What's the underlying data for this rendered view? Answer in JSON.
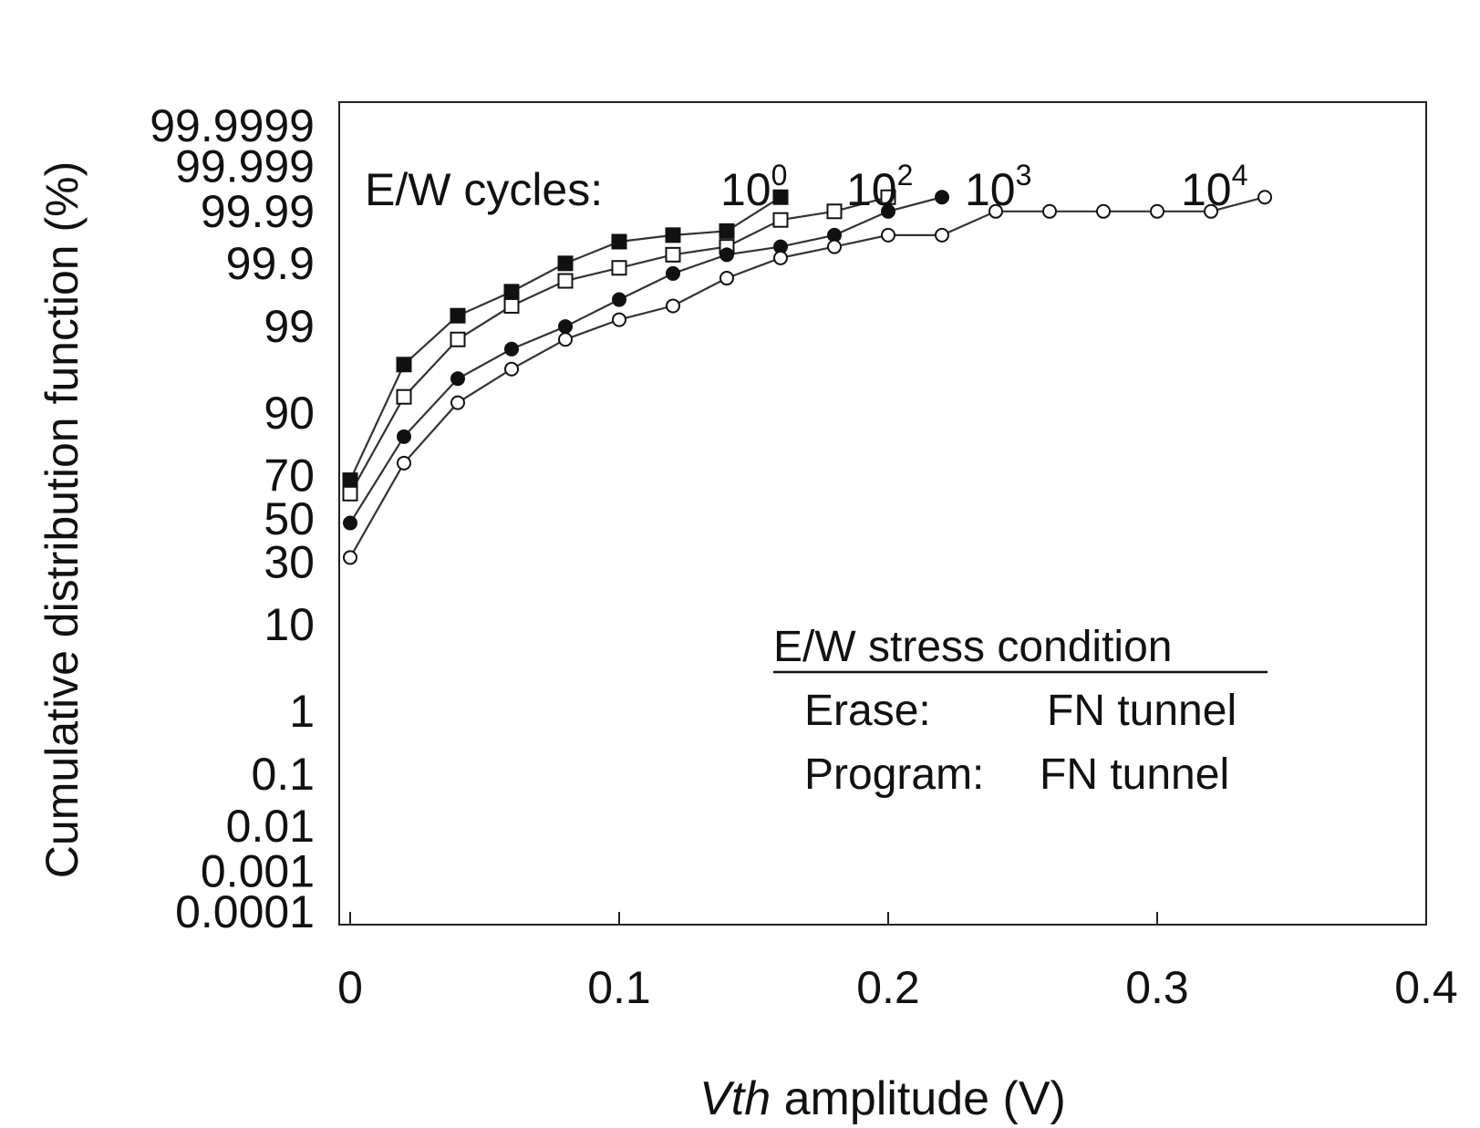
{
  "chart_data": {
    "type": "line",
    "xlabel": {
      "italic": "Vth",
      "rest": " amplitude (V)"
    },
    "ylabel": "Cumulative distribution function  (%)",
    "xlim": [
      0,
      0.4
    ],
    "x_ticks": [
      "0",
      "0.1",
      "0.2",
      "0.3",
      "0.4"
    ],
    "y_scale": "normal-probability",
    "y_ticks": [
      "0.0001",
      "0.001",
      "0.01",
      "0.1",
      "1",
      "10",
      "30",
      "50",
      "70",
      "90",
      "99",
      "99.9",
      "99.99",
      "99.999",
      "99.9999"
    ],
    "cycles_label": "E/W cycles:",
    "cycle_labels": [
      {
        "base": "10",
        "exp": "0"
      },
      {
        "base": "10",
        "exp": "2"
      },
      {
        "base": "10",
        "exp": "3"
      },
      {
        "base": "10",
        "exp": "4"
      }
    ],
    "legend_box": {
      "title": "E/W stress condition",
      "rows": [
        {
          "label": "Erase:",
          "value": "FN tunnel"
        },
        {
          "label": "Program:",
          "value": "FN tunnel"
        }
      ]
    },
    "series": [
      {
        "marker": "filled-square",
        "x": [
          0,
          0.02,
          0.04,
          0.06,
          0.08,
          0.1,
          0.12,
          0.14,
          0.16
        ],
        "y": [
          68,
          96.9,
          99.3,
          99.7,
          99.9,
          99.96,
          99.97,
          99.975,
          99.995
        ]
      },
      {
        "marker": "open-square",
        "x": [
          0,
          0.02,
          0.04,
          0.06,
          0.08,
          0.1,
          0.12,
          0.14,
          0.16,
          0.18,
          0.2
        ],
        "y": [
          62,
          93,
          98.5,
          99.5,
          99.8,
          99.88,
          99.93,
          99.95,
          99.985,
          99.99,
          99.995
        ]
      },
      {
        "marker": "filled-circle",
        "x": [
          0,
          0.02,
          0.04,
          0.06,
          0.08,
          0.1,
          0.12,
          0.14,
          0.16,
          0.18,
          0.2,
          0.22
        ],
        "y": [
          48,
          84,
          95.5,
          98,
          99,
          99.6,
          99.85,
          99.93,
          99.95,
          99.97,
          99.99,
          99.995
        ]
      },
      {
        "marker": "open-circle",
        "x": [
          0,
          0.02,
          0.04,
          0.06,
          0.08,
          0.1,
          0.12,
          0.14,
          0.16,
          0.18,
          0.2,
          0.22,
          0.24,
          0.26,
          0.28,
          0.3,
          0.32,
          0.34
        ],
        "y": [
          32,
          75,
          92,
          96.5,
          98.5,
          99.2,
          99.5,
          99.82,
          99.92,
          99.95,
          99.97,
          99.97,
          99.99,
          99.99,
          99.99,
          99.99,
          99.99,
          99.995
        ]
      }
    ]
  }
}
